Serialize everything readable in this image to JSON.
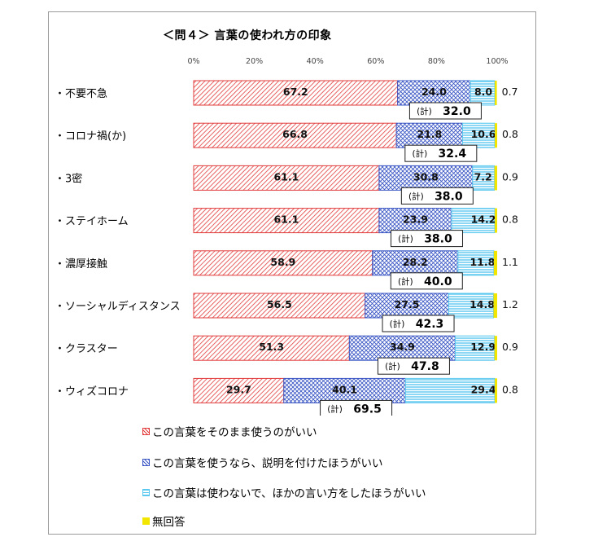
{
  "chart_data": {
    "type": "bar",
    "stacked": true,
    "orientation": "horizontal",
    "title": "＜問４＞ 言葉の使われ方の印象",
    "xlim": [
      0,
      100
    ],
    "ticks": [
      "0%",
      "20%",
      "40%",
      "60%",
      "80%",
      "100%"
    ],
    "categories": [
      "・不要不急",
      "・コロナ禍(か)",
      "・3密",
      "・ステイホーム",
      "・濃厚接触",
      "・ソーシャルディスタンス",
      "・クラスター",
      "・ウィズコロナ"
    ],
    "series": [
      {
        "name": "この言葉をそのまま使うのがいい",
        "color": "#e23b3b",
        "values": [
          67.2,
          66.8,
          61.1,
          61.1,
          58.9,
          56.5,
          51.3,
          29.7
        ]
      },
      {
        "name": "この言葉を使うなら、説明を付けたほうがいい",
        "color": "#3a56c4",
        "values": [
          24.0,
          21.8,
          30.8,
          23.9,
          28.2,
          27.5,
          34.9,
          40.1
        ]
      },
      {
        "name": "この言葉は使わないで、ほかの言い方をしたほうがいい",
        "color": "#5bc8ef",
        "values": [
          8.0,
          10.6,
          7.2,
          14.2,
          11.8,
          14.8,
          12.9,
          29.4
        ]
      },
      {
        "name": "無回答",
        "color": "#f2e600",
        "values": [
          0.7,
          0.8,
          0.9,
          0.8,
          1.1,
          1.2,
          0.9,
          0.8
        ]
      }
    ],
    "subtotal_prefix": "(計)",
    "subtotals": [
      32.0,
      32.4,
      38.0,
      38.0,
      40.0,
      42.3,
      47.8,
      69.5
    ]
  }
}
